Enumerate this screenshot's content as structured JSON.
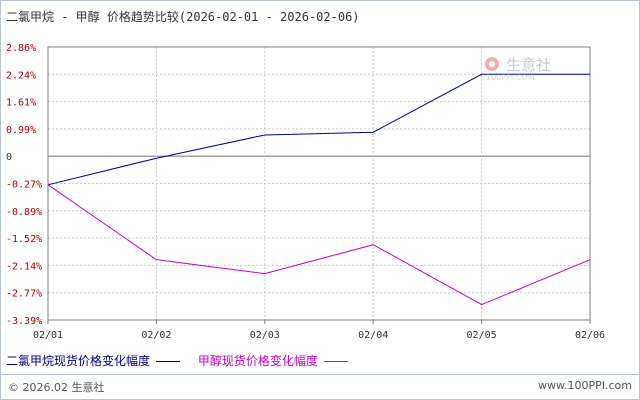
{
  "header": {
    "title": "二氯甲烷 - 甲醇 价格趋势比较(2026-02-01 - 2026-02-06)"
  },
  "watermark": {
    "logo_text": "生意社",
    "url_text": "100PPI.COM"
  },
  "colors": {
    "series1": "#000099",
    "series2": "#cc00cc",
    "grid": "#c8c8c8",
    "axis": "#808080",
    "tick_red": "#b00000"
  },
  "chart_data": {
    "type": "line",
    "title": "二氯甲烷 - 甲醇 价格趋势比较(2026-02-01 - 2026-02-06)",
    "x": [
      "02/01",
      "02/02",
      "02/03",
      "02/04",
      "02/05",
      "02/06"
    ],
    "y_ticks": [
      "2.86%",
      "2.24%",
      "1.61%",
      "0.99%",
      "0",
      "-0.27%",
      "-0.89%",
      "-1.52%",
      "-2.14%",
      "-2.77%",
      "-3.39%"
    ],
    "y_tick_values": [
      2.86,
      2.24,
      1.61,
      0.99,
      0,
      -0.27,
      -0.89,
      -1.52,
      -2.14,
      -2.77,
      -3.39
    ],
    "ylim": [
      -3.39,
      2.86
    ],
    "grid": true,
    "legend_position": "bottom-left",
    "series": [
      {
        "name": "二氯甲烷现货价格变化幅度",
        "values": [
          -0.3,
          -0.02,
          0.77,
          0.87,
          2.24,
          2.24
        ]
      },
      {
        "name": "甲醇现货价格变化幅度",
        "values": [
          -0.3,
          -2.01,
          -2.33,
          -1.67,
          -3.04,
          -2.01
        ]
      }
    ]
  },
  "footer": {
    "copyright": "© 2026.02 生意社",
    "site": "www.100PPI.com"
  }
}
